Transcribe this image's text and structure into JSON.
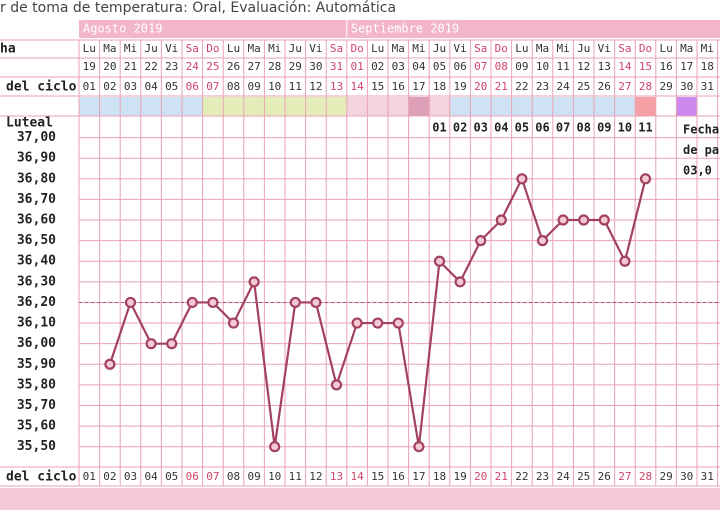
{
  "caption": "r de toma de temperatura: Oral, Evaluación: Automática",
  "chart_data": {
    "type": "line",
    "months": [
      "Agosto 2019",
      "Septiembre 2019"
    ],
    "row_labels": {
      "dates": "ha",
      "cycle": "del ciclo",
      "luteal": "Luteal",
      "cycle_bottom": "del ciclo"
    },
    "weekdays": [
      "Lu",
      "Ma",
      "Mi",
      "Ju",
      "Vi",
      "Sa",
      "Do",
      "Lu",
      "Ma",
      "Mi",
      "Ju",
      "Vi",
      "Sa",
      "Do",
      "Lu",
      "Ma",
      "Mi",
      "Ju",
      "Vi",
      "Sa",
      "Do",
      "Lu",
      "Ma",
      "Mi",
      "Ju",
      "Vi",
      "Sa",
      "Do",
      "Lu",
      "Ma",
      "Mi"
    ],
    "dates": [
      "19",
      "20",
      "21",
      "22",
      "23",
      "24",
      "25",
      "26",
      "27",
      "28",
      "29",
      "30",
      "31",
      "01",
      "02",
      "03",
      "04",
      "05",
      "06",
      "07",
      "08",
      "09",
      "10",
      "11",
      "12",
      "13",
      "14",
      "15",
      "16",
      "17",
      "18"
    ],
    "categories": [
      "01",
      "02",
      "03",
      "04",
      "05",
      "06",
      "07",
      "08",
      "09",
      "10",
      "11",
      "12",
      "13",
      "14",
      "15",
      "16",
      "17",
      "18",
      "19",
      "20",
      "21",
      "22",
      "23",
      "24",
      "25",
      "26",
      "27",
      "28",
      "29",
      "30",
      "31"
    ],
    "phase_colors": [
      "#cfe2f3",
      "#cfe2f3",
      "#cfe2f3",
      "#cfe2f3",
      "#cfe2f3",
      "#cfe2f3",
      "#e4edb8",
      "#e4edb8",
      "#e4edb8",
      "#e4edb8",
      "#e4edb8",
      "#e4edb8",
      "#e4edb8",
      "#f4d3de",
      "#f4d3de",
      "#f4d3de",
      "#dea0b8",
      "#f4d3de",
      "#cfe2f3",
      "#cfe2f3",
      "#cfe2f3",
      "#cfe2f3",
      "#cfe2f3",
      "#cfe2f3",
      "#cfe2f3",
      "#cfe2f3",
      "#cfe2f3",
      "#f4a0a4",
      null,
      "#cc88ee",
      null
    ],
    "luteal": [
      null,
      null,
      null,
      null,
      null,
      null,
      null,
      null,
      null,
      null,
      null,
      null,
      null,
      null,
      null,
      null,
      null,
      "01",
      "02",
      "03",
      "04",
      "05",
      "06",
      "07",
      "08",
      "09",
      "10",
      "11",
      null,
      null,
      null
    ],
    "series": [
      {
        "name": "Temperatura",
        "color": "#a3425e",
        "values": [
          null,
          35.9,
          36.2,
          36.0,
          36.0,
          36.2,
          36.2,
          36.1,
          36.3,
          35.5,
          36.2,
          36.2,
          35.8,
          36.1,
          36.1,
          36.1,
          35.5,
          36.4,
          36.3,
          36.5,
          36.6,
          36.8,
          36.5,
          36.6,
          36.6,
          36.6,
          36.4,
          36.8,
          null,
          null,
          null
        ]
      }
    ],
    "coverline": 36.2,
    "ylim": [
      35.45,
      37.1
    ],
    "yticks": [
      {
        "value": 37.0,
        "label": "37,00"
      },
      {
        "value": 36.9,
        "label": "36,90"
      },
      {
        "value": 36.8,
        "label": "36,80"
      },
      {
        "value": 36.7,
        "label": "36,70"
      },
      {
        "value": 36.6,
        "label": "36,60"
      },
      {
        "value": 36.5,
        "label": "36,50"
      },
      {
        "value": 36.4,
        "label": "36,40"
      },
      {
        "value": 36.3,
        "label": "36,30"
      },
      {
        "value": 36.2,
        "label": "36,20"
      },
      {
        "value": 36.1,
        "label": "36,10"
      },
      {
        "value": 36.0,
        "label": "36,00"
      },
      {
        "value": 35.9,
        "label": "35,90"
      },
      {
        "value": 35.8,
        "label": "35,80"
      },
      {
        "value": 35.7,
        "label": "35,70"
      },
      {
        "value": 35.6,
        "label": "35,60"
      },
      {
        "value": 35.5,
        "label": "35,50"
      }
    ],
    "side_note": [
      "Fecha",
      "de pa",
      "03,0"
    ]
  }
}
